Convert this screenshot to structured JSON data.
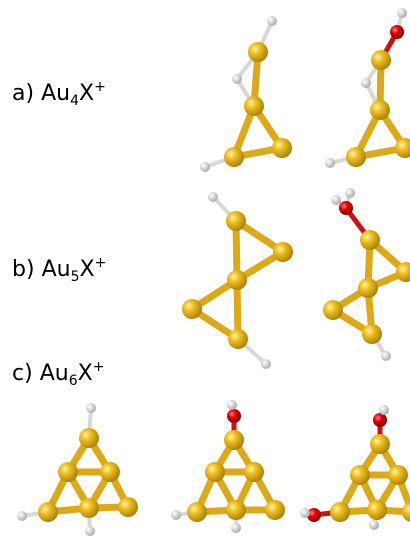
{
  "labels": [
    {
      "prefix": "a)",
      "base": "Au",
      "sub": "4",
      "x": "X",
      "sup": "+"
    },
    {
      "prefix": "b)",
      "base": "Au",
      "sub": "5",
      "x": "X",
      "sup": "+"
    },
    {
      "prefix": "c)",
      "base": "Au",
      "sub": "6",
      "x": "X",
      "sup": "+"
    }
  ]
}
